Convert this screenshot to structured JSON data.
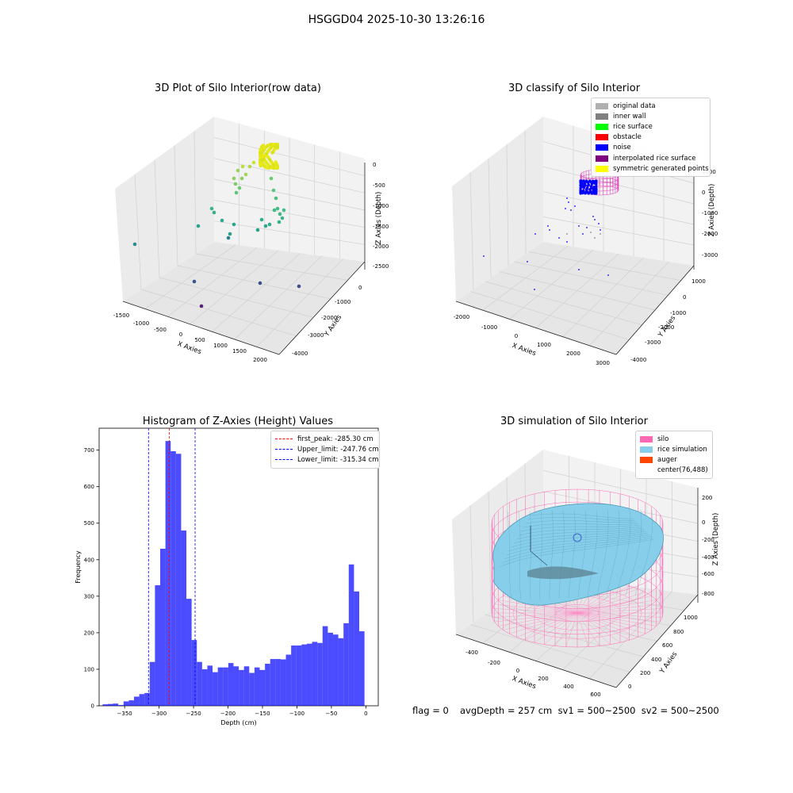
{
  "suptitle": "HSGGD04 2025-10-30 13:26:16",
  "panel1": {
    "title": "3D Plot of Silo Interior(row data)",
    "xlabel": "X Axies",
    "ylabel": "Y Axies",
    "zlabel": "Z Axies (Depth)",
    "xticks": [
      "-1500",
      "-1000",
      "-500",
      "0",
      "500",
      "1000",
      "1500",
      "2000"
    ],
    "yticks": [
      "0",
      "-1000",
      "-2000",
      "-3000",
      "-4000"
    ],
    "zticks": [
      "0",
      "-500",
      "-1000",
      "-1500",
      "-2000",
      "-2500"
    ]
  },
  "panel2": {
    "title": "3D classify of Silo Interior",
    "xlabel": "X Axies",
    "ylabel": "Y Axies",
    "zlabel": "Z Axies (Depth)",
    "xticks": [
      "-2000",
      "-1000",
      "0",
      "1000",
      "2000",
      "3000"
    ],
    "yticks": [
      "1000",
      "0",
      "-1000",
      "-2000",
      "-3000",
      "-4000"
    ],
    "zticks": [
      "1000",
      "0",
      "-1000",
      "-2000",
      "-3000"
    ],
    "legend": [
      {
        "label": "original data",
        "color": "#b0b0b0"
      },
      {
        "label": "inner wall",
        "color": "#808080"
      },
      {
        "label": "rice surface",
        "color": "#00ff00"
      },
      {
        "label": "obstacle",
        "color": "#ff0000"
      },
      {
        "label": "noise",
        "color": "#0000ff"
      },
      {
        "label": "interpolated rice surface",
        "color": "#800080"
      },
      {
        "label": "symmetric generated points",
        "color": "#ffff00"
      }
    ]
  },
  "panel4": {
    "title": "3D simulation of Silo Interior",
    "xlabel": "X Axies",
    "ylabel": "Y Axies",
    "zlabel": "Z Axies (Depth)",
    "xticks": [
      "-400",
      "-200",
      "0",
      "200",
      "400",
      "600"
    ],
    "yticks": [
      "0",
      "200",
      "400",
      "600",
      "800",
      "1000"
    ],
    "zticks": [
      "200",
      "0",
      "-200",
      "-400",
      "-600",
      "-800"
    ],
    "legend": [
      {
        "label": "silo",
        "color": "#ff69b4"
      },
      {
        "label": "rice simulation",
        "color": "#87ceeb"
      },
      {
        "label": "auger",
        "color": "#ff4500"
      },
      {
        "label": "center(76,488)",
        "color": "transparent"
      }
    ]
  },
  "status": {
    "flag": "flag = 0",
    "avg": "avgDepth = 257 cm  sv1 = 500~2500  sv2 = 500~2500"
  },
  "chart_data": {
    "type": "bar",
    "title": "Histogram of Z-Axies (Height) Values",
    "xlabel": "Depth (cm)",
    "ylabel": "Frequency",
    "xlim": [
      -387,
      18
    ],
    "ylim": [
      0,
      760
    ],
    "xticks": [
      -350,
      -300,
      -250,
      -200,
      -150,
      -100,
      -50,
      0
    ],
    "yticks": [
      0,
      100,
      200,
      300,
      400,
      500,
      600,
      700
    ],
    "bar_color": "#0000ff",
    "bin_start": -382,
    "bin_width": 7.6,
    "values": [
      4,
      5,
      6,
      2,
      12,
      15,
      25,
      32,
      35,
      120,
      330,
      430,
      725,
      697,
      690,
      480,
      293,
      180,
      120,
      100,
      110,
      92,
      105,
      105,
      117,
      108,
      98,
      108,
      90,
      105,
      98,
      115,
      128,
      128,
      127,
      140,
      165,
      165,
      168,
      170,
      175,
      172,
      218,
      200,
      195,
      185,
      226,
      387,
      313,
      204
    ],
    "vlines": [
      {
        "label": "first_peak: -285.30 cm",
        "x": -285.3,
        "color": "#ff0000"
      },
      {
        "label": "Upper_limit: -247.76 cm",
        "x": -247.76,
        "color": "#0000ff"
      },
      {
        "label": "Lower_limit: -315.34 cm",
        "x": -315.34,
        "color": "#0000ff"
      }
    ]
  }
}
